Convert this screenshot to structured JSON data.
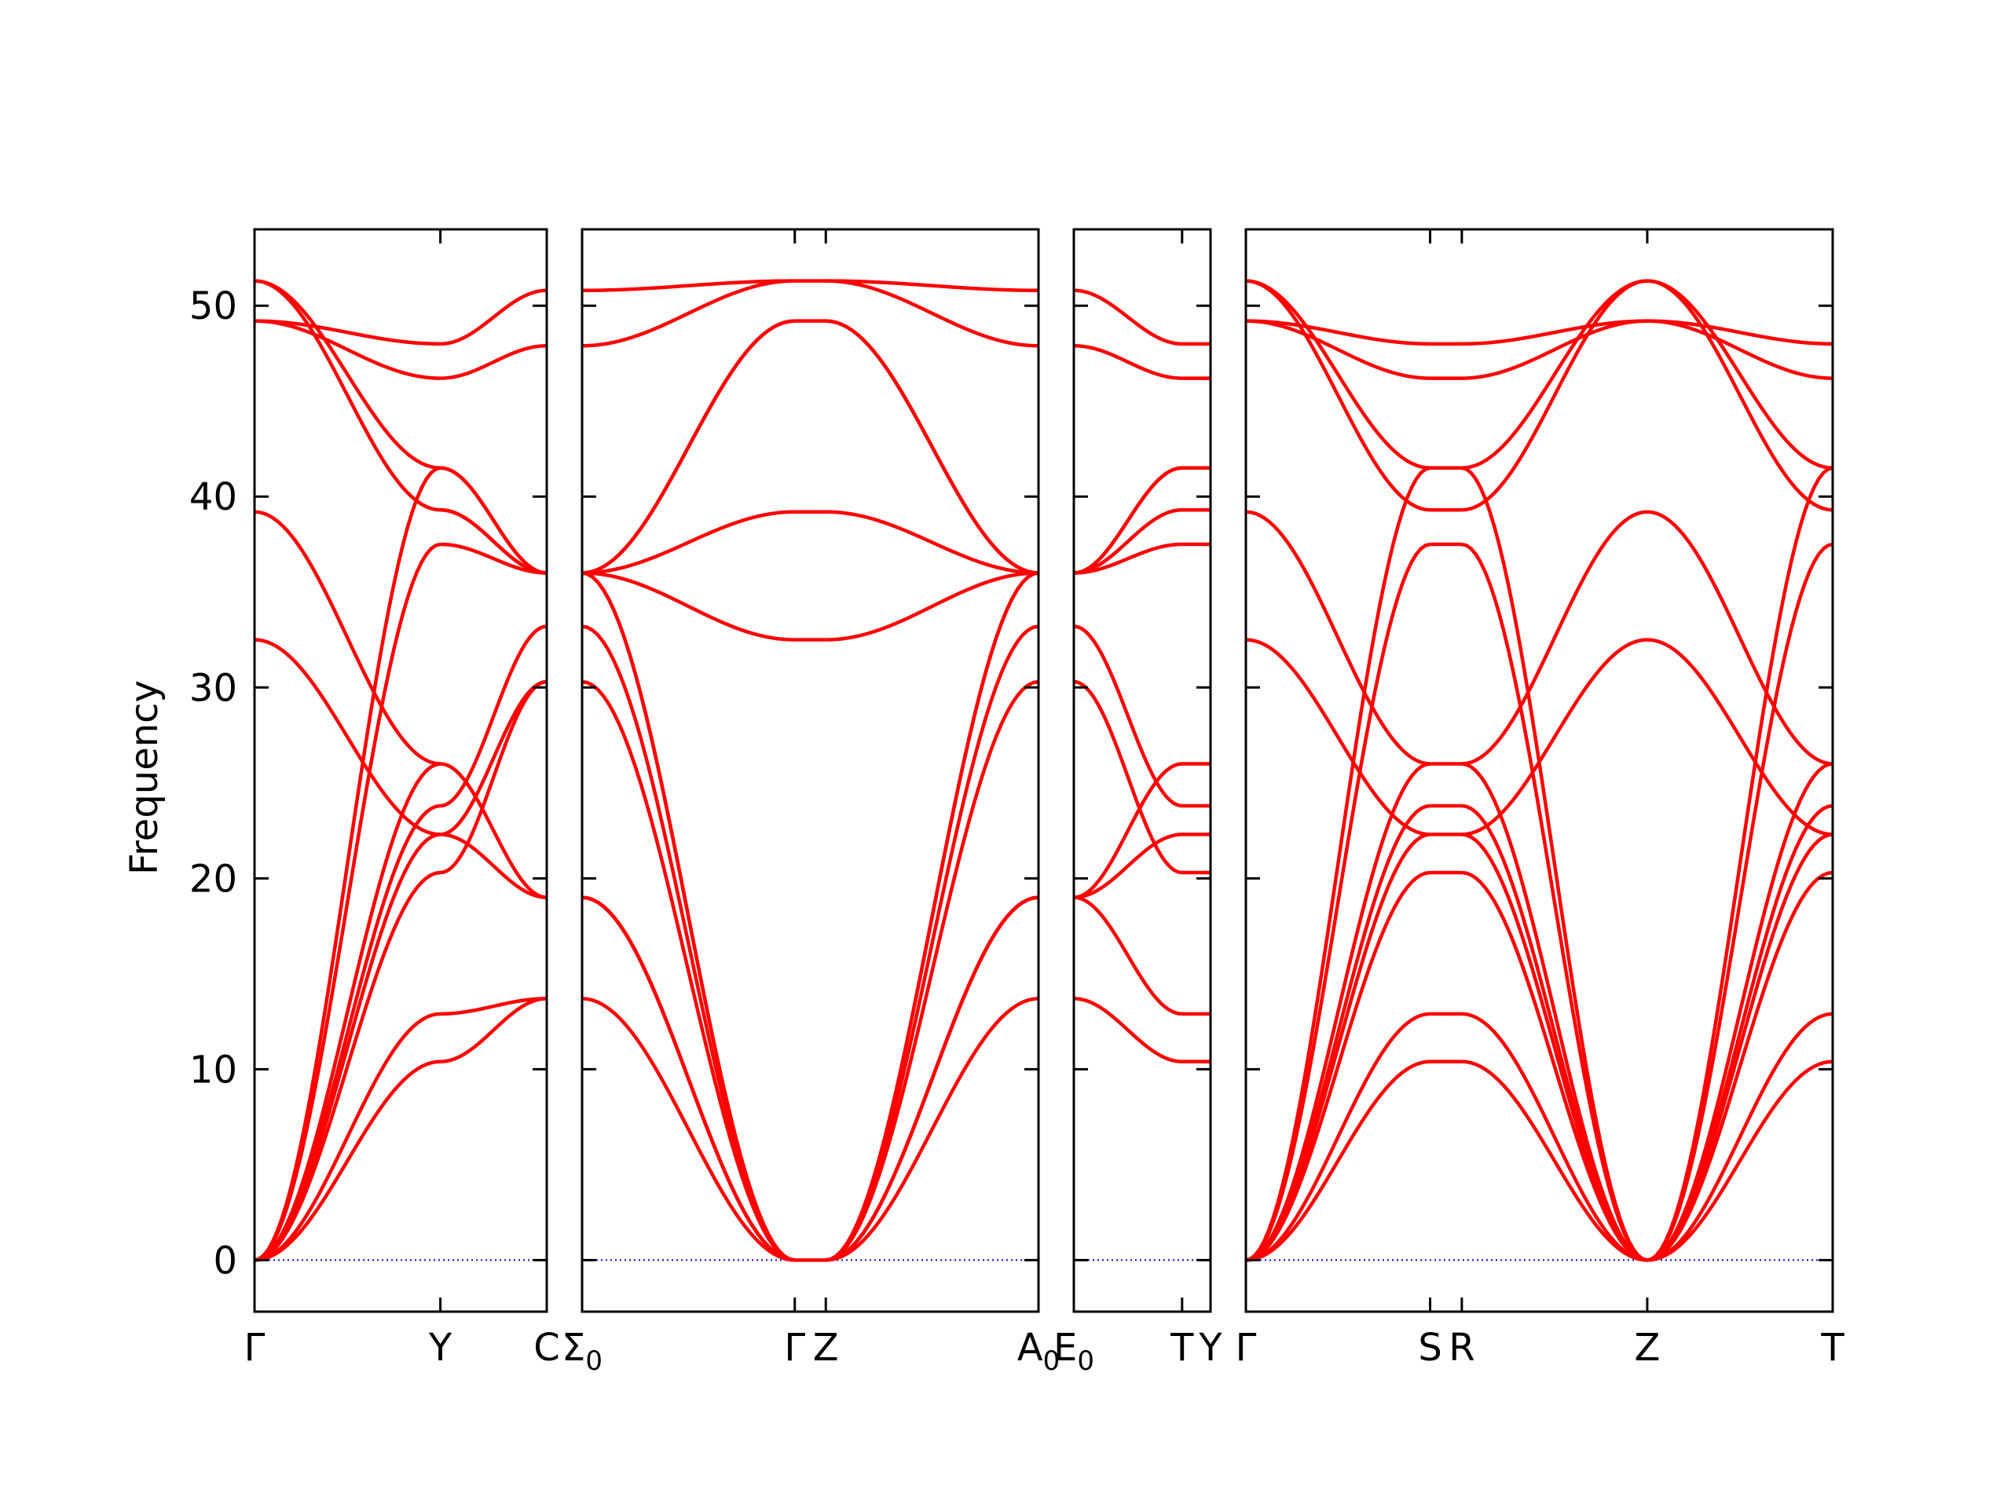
{
  "chart_data": {
    "type": "line",
    "ylabel": "Frequency",
    "ylim": [
      -2.7,
      54
    ],
    "yticks": [
      0,
      10,
      20,
      30,
      40,
      50
    ],
    "grid": false,
    "series_color": "#ff0000",
    "zero_line_color": "#0000cc",
    "panels": [
      {
        "xticks": [
          "Γ",
          "Y",
          "C"
        ],
        "xtick_pos": [
          0,
          0.636,
          1
        ],
        "segments": [
          {
            "ends": [
              0,
              0.636
            ],
            "bands": [
              [
                0,
                10.4
              ],
              [
                0,
                12.9
              ],
              [
                0,
                20.3
              ],
              [
                0,
                23.8
              ],
              [
                0,
                37.5
              ],
              [
                0,
                41.5
              ],
              [
                0,
                22.3
              ],
              [
                0,
                26.0
              ],
              [
                32.5,
                22.3
              ],
              [
                39.2,
                26.0
              ],
              [
                49.2,
                46.2
              ],
              [
                49.2,
                48.0
              ],
              [
                51.3,
                39.3
              ],
              [
                51.3,
                41.5
              ]
            ]
          },
          {
            "ends": [
              0.636,
              1
            ],
            "bands": [
              [
                10.4,
                13.7
              ],
              [
                12.9,
                13.7
              ],
              [
                20.3,
                30.3
              ],
              [
                23.8,
                33.2
              ],
              [
                37.5,
                36.0
              ],
              [
                41.5,
                36.0
              ],
              [
                46.2,
                47.9
              ],
              [
                48.0,
                50.8
              ],
              [
                39.3,
                36.0
              ],
              [
                22.3,
                19.0
              ],
              [
                26.0,
                19.0
              ],
              [
                41.5,
                36.0
              ],
              [
                39.3,
                36.0
              ],
              [
                22.3,
                30.3
              ]
            ]
          }
        ]
      },
      {
        "xticks": [
          "Σ0",
          "Γ",
          "Z",
          "A0"
        ],
        "xtick_pos": [
          0,
          0.466,
          0.534,
          1
        ],
        "segments": [
          {
            "ends": [
              0,
              0.466
            ],
            "bands": [
              [
                13.7,
                0
              ],
              [
                19.0,
                0
              ],
              [
                19.0,
                0
              ],
              [
                30.3,
                0
              ],
              [
                33.2,
                0
              ],
              [
                36.0,
                0
              ],
              [
                36.0,
                0
              ],
              [
                36.0,
                32.5
              ],
              [
                36.0,
                39.2
              ],
              [
                36.0,
                49.2
              ],
              [
                36.0,
                49.2
              ],
              [
                47.9,
                51.3
              ],
              [
                50.8,
                51.3
              ],
              [
                19.0,
                0
              ]
            ]
          },
          {
            "ends": [
              0.466,
              0.534
            ],
            "bands": [
              [
                0,
                0
              ],
              [
                32.5,
                32.5
              ],
              [
                39.2,
                39.2
              ],
              [
                49.2,
                49.2
              ],
              [
                51.3,
                51.3
              ]
            ]
          },
          {
            "ends": [
              0.534,
              1
            ],
            "bands": [
              [
                0,
                13.7
              ],
              [
                0,
                19.0
              ],
              [
                0,
                19.0
              ],
              [
                0,
                30.3
              ],
              [
                0,
                33.2
              ],
              [
                0,
                36.0
              ],
              [
                0,
                36.0
              ],
              [
                32.5,
                36.0
              ],
              [
                39.2,
                36.0
              ],
              [
                49.2,
                36.0
              ],
              [
                49.2,
                36.0
              ],
              [
                51.3,
                47.9
              ],
              [
                51.3,
                50.8
              ],
              [
                0,
                19.0
              ]
            ]
          }
        ]
      },
      {
        "xticks": [
          "E0",
          "T",
          "Y"
        ],
        "xtick_pos": [
          0,
          0.792,
          1
        ],
        "segments": [
          {
            "ends": [
              0,
              0.792
            ],
            "bands": [
              [
                13.7,
                10.4
              ],
              [
                19.0,
                12.9
              ],
              [
                19.0,
                22.3
              ],
              [
                19.0,
                26.0
              ],
              [
                30.3,
                20.3
              ],
              [
                33.2,
                23.8
              ],
              [
                36.0,
                37.5
              ],
              [
                36.0,
                39.3
              ],
              [
                36.0,
                41.5
              ],
              [
                36.0,
                41.5
              ],
              [
                47.9,
                46.2
              ],
              [
                50.8,
                48.0
              ]
            ]
          },
          {
            "ends": [
              0.792,
              1
            ],
            "bands": [
              [
                10.4,
                10.4
              ],
              [
                12.9,
                12.9
              ],
              [
                20.3,
                20.3
              ],
              [
                22.3,
                22.3
              ],
              [
                23.8,
                23.8
              ],
              [
                26.0,
                26.0
              ],
              [
                37.5,
                37.5
              ],
              [
                39.3,
                39.3
              ],
              [
                41.5,
                41.5
              ],
              [
                46.2,
                46.2
              ],
              [
                48.0,
                48.0
              ]
            ]
          }
        ]
      },
      {
        "xticks": [
          "Γ",
          "S",
          "R",
          "Z",
          "T"
        ],
        "xtick_pos": [
          0,
          0.314,
          0.368,
          0.684,
          1
        ],
        "segments": [
          {
            "ends": [
              0,
              0.314
            ],
            "bands": [
              [
                0,
                10.4
              ],
              [
                0,
                12.9
              ],
              [
                0,
                20.3
              ],
              [
                0,
                23.8
              ],
              [
                0,
                37.5
              ],
              [
                0,
                41.5
              ],
              [
                0,
                22.3
              ],
              [
                0,
                26.0
              ],
              [
                32.5,
                22.3
              ],
              [
                39.2,
                26.0
              ],
              [
                49.2,
                46.2
              ],
              [
                49.2,
                48.0
              ],
              [
                51.3,
                39.3
              ],
              [
                51.3,
                41.5
              ]
            ]
          },
          {
            "ends": [
              0.314,
              0.368
            ],
            "bands": [
              [
                10.4,
                10.4
              ],
              [
                12.9,
                12.9
              ],
              [
                20.3,
                20.3
              ],
              [
                22.3,
                22.3
              ],
              [
                23.8,
                23.8
              ],
              [
                26.0,
                26.0
              ],
              [
                37.5,
                37.5
              ],
              [
                39.3,
                39.3
              ],
              [
                41.5,
                41.5
              ],
              [
                46.2,
                46.2
              ],
              [
                48.0,
                48.0
              ]
            ]
          },
          {
            "ends": [
              0.368,
              0.684
            ],
            "bands": [
              [
                10.4,
                0
              ],
              [
                12.9,
                0
              ],
              [
                20.3,
                0
              ],
              [
                23.8,
                0
              ],
              [
                37.5,
                0
              ],
              [
                41.5,
                0
              ],
              [
                22.3,
                0
              ],
              [
                26.0,
                0
              ],
              [
                22.3,
                32.5
              ],
              [
                26.0,
                39.2
              ],
              [
                46.2,
                49.2
              ],
              [
                48.0,
                49.2
              ],
              [
                39.3,
                51.3
              ],
              [
                41.5,
                51.3
              ]
            ]
          },
          {
            "ends": [
              0.684,
              1
            ],
            "bands": [
              [
                0,
                10.4
              ],
              [
                0,
                12.9
              ],
              [
                0,
                20.3
              ],
              [
                0,
                23.8
              ],
              [
                0,
                37.5
              ],
              [
                0,
                41.5
              ],
              [
                0,
                22.3
              ],
              [
                0,
                26.0
              ],
              [
                32.5,
                22.3
              ],
              [
                39.2,
                26.0
              ],
              [
                49.2,
                46.2
              ],
              [
                49.2,
                48.0
              ],
              [
                51.3,
                39.3
              ],
              [
                51.3,
                41.5
              ]
            ]
          }
        ]
      }
    ]
  }
}
